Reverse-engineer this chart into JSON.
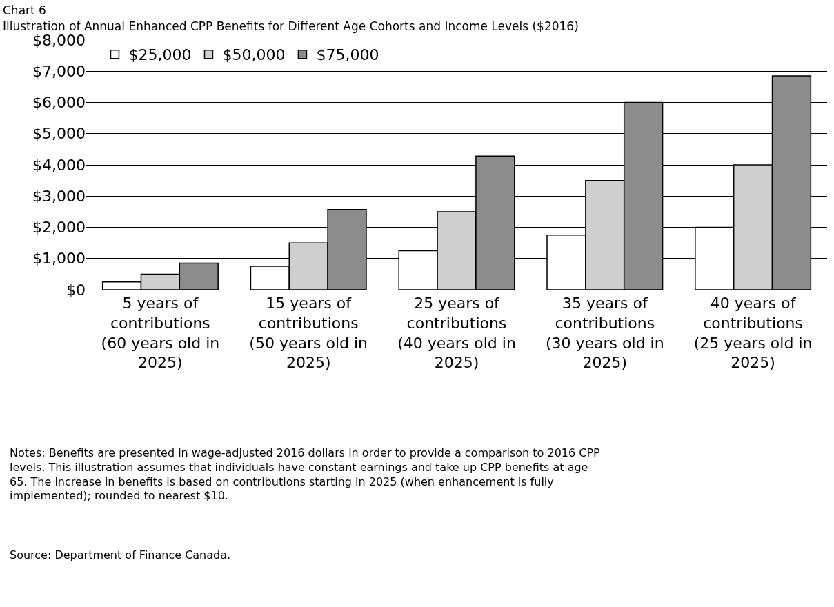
{
  "chart_data": {
    "type": "bar",
    "title": "Chart 6",
    "subtitle": "Illustration of Annual Enhanced CPP Benefits for Different Age Cohorts and Income Levels ($2016)",
    "categories": [
      "5 years of contributions (60 years old in 2025)",
      "15 years of contributions (50 years old in 2025)",
      "25 years of contributions (40 years old in 2025)",
      "35 years of contributions (30 years old in 2025)",
      "40 years of contributions (25 years old in 2025)"
    ],
    "series": [
      {
        "name": "$25,000",
        "color": "#ffffff",
        "values": [
          250,
          750,
          1250,
          1750,
          2000
        ]
      },
      {
        "name": "$50,000",
        "color": "#cfcfcf",
        "values": [
          500,
          1500,
          2500,
          3500,
          4000
        ]
      },
      {
        "name": "$75,000",
        "color": "#8c8c8c",
        "values": [
          850,
          2570,
          4280,
          6000,
          6850
        ]
      }
    ],
    "ylim": [
      0,
      8000
    ],
    "yticks": [
      {
        "value": 0,
        "label": "$0"
      },
      {
        "value": 1000,
        "label": "$1,000"
      },
      {
        "value": 2000,
        "label": "$2,000"
      },
      {
        "value": 3000,
        "label": "$3,000"
      },
      {
        "value": 4000,
        "label": "$4,000"
      },
      {
        "value": 5000,
        "label": "$5,000"
      },
      {
        "value": 6000,
        "label": "$6,000"
      },
      {
        "value": 7000,
        "label": "$7,000"
      },
      {
        "value": 8000,
        "label": "$8,000"
      }
    ],
    "grid": "y",
    "legend": "top left",
    "annotations": [
      "Notes: Benefits are presented in wage-adjusted 2016 dollars in order to provide a comparison to 2016 CPP levels. This illustration assumes that individuals have constant earnings and take up CPP benefits at age 65. The increase in benefits is based on contributions starting in 2025 (when enhancement is fully implemented); rounded to nearest $10.",
      "Source: Department of Finance Canada."
    ]
  }
}
